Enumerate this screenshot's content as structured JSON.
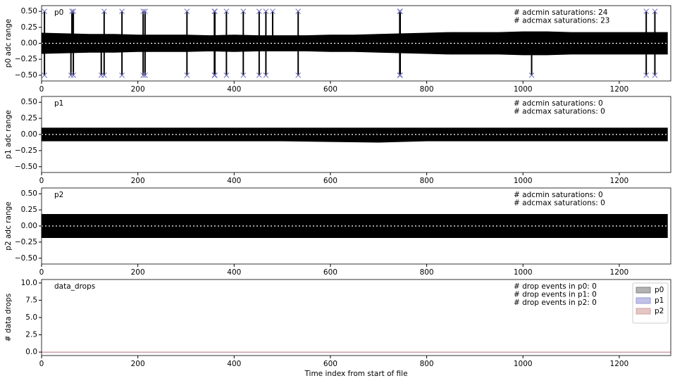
{
  "chart_data": [
    {
      "type": "band",
      "label": "p0",
      "ylabel": "p0 adc range",
      "annotations": [
        "# adcmin saturations: 24",
        "# adcmax saturations: 23"
      ],
      "x": [
        0,
        50,
        100,
        150,
        200,
        250,
        300,
        350,
        400,
        450,
        500,
        550,
        600,
        650,
        700,
        750,
        800,
        850,
        900,
        950,
        1000,
        1050,
        1100,
        1150,
        1200,
        1250,
        1300
      ],
      "upper": [
        0.16,
        0.15,
        0.14,
        0.14,
        0.13,
        0.13,
        0.13,
        0.12,
        0.13,
        0.12,
        0.12,
        0.12,
        0.13,
        0.13,
        0.14,
        0.15,
        0.16,
        0.17,
        0.17,
        0.17,
        0.18,
        0.18,
        0.17,
        0.17,
        0.17,
        0.17,
        0.17
      ],
      "lower": [
        -0.16,
        -0.15,
        -0.14,
        -0.14,
        -0.13,
        -0.13,
        -0.13,
        -0.12,
        -0.13,
        -0.12,
        -0.12,
        -0.12,
        -0.13,
        -0.13,
        -0.14,
        -0.15,
        -0.16,
        -0.17,
        -0.17,
        -0.17,
        -0.18,
        -0.18,
        -0.17,
        -0.17,
        -0.17,
        -0.17,
        -0.17
      ],
      "color": "#000000",
      "zero_line": 0,
      "max_level": 0.5,
      "max_x": [
        6,
        63,
        66,
        130,
        167,
        211,
        215,
        302,
        359,
        360,
        384,
        419,
        452,
        466,
        480,
        533,
        744,
        745,
        1256,
        1274
      ],
      "min_level": -0.5,
      "min_x": [
        6,
        61,
        66,
        124,
        130,
        167,
        211,
        215,
        302,
        359,
        360,
        384,
        419,
        452,
        466,
        533,
        744,
        745,
        1018,
        1256,
        1274
      ],
      "marker_color": "#7070c0",
      "xlim": [
        0,
        1307
      ],
      "xticks": [
        0,
        200,
        400,
        600,
        800,
        1000,
        1200
      ],
      "ylim": [
        -0.59,
        0.59
      ],
      "yticks": [
        {
          "value": -0.5,
          "label": "−0.50"
        },
        {
          "value": -0.25,
          "label": "−0.25"
        },
        {
          "value": 0,
          "label": "0.00"
        },
        {
          "value": 0.25,
          "label": "0.25"
        },
        {
          "value": 0.5,
          "label": "0.50"
        }
      ]
    },
    {
      "type": "band",
      "label": "p1",
      "ylabel": "p1 adc range",
      "annotations": [
        "# adcmin saturations: 0",
        "# adcmax saturations: 0"
      ],
      "x": [
        0,
        100,
        200,
        300,
        400,
        500,
        600,
        700,
        800,
        900,
        1000,
        1100,
        1200,
        1300
      ],
      "upper": [
        0.1,
        0.1,
        0.1,
        0.1,
        0.1,
        0.1,
        0.1,
        0.1,
        0.1,
        0.1,
        0.1,
        0.1,
        0.1,
        0.1
      ],
      "lower": [
        -0.1,
        -0.1,
        -0.1,
        -0.1,
        -0.1,
        -0.1,
        -0.11,
        -0.12,
        -0.1,
        -0.1,
        -0.1,
        -0.1,
        -0.1,
        -0.1
      ],
      "color": "#000000",
      "zero_line": 0,
      "xlim": [
        0,
        1307
      ],
      "xticks": [
        0,
        200,
        400,
        600,
        800,
        1000,
        1200
      ],
      "ylim": [
        -0.59,
        0.59
      ],
      "yticks": [
        {
          "value": -0.5,
          "label": "−0.50"
        },
        {
          "value": -0.25,
          "label": "−0.25"
        },
        {
          "value": 0,
          "label": "0.00"
        },
        {
          "value": 0.25,
          "label": "0.25"
        },
        {
          "value": 0.5,
          "label": "0.50"
        }
      ]
    },
    {
      "type": "band",
      "label": "p2",
      "ylabel": "p2 adc range",
      "annotations": [
        "# adcmin saturations: 0",
        "# adcmax saturations: 0"
      ],
      "x": [
        0,
        100,
        200,
        300,
        400,
        500,
        600,
        700,
        800,
        900,
        1000,
        1100,
        1200,
        1300
      ],
      "upper": [
        0.18,
        0.18,
        0.18,
        0.18,
        0.18,
        0.18,
        0.18,
        0.18,
        0.18,
        0.18,
        0.18,
        0.18,
        0.18,
        0.18
      ],
      "lower": [
        -0.18,
        -0.18,
        -0.18,
        -0.18,
        -0.18,
        -0.18,
        -0.18,
        -0.18,
        -0.18,
        -0.18,
        -0.18,
        -0.18,
        -0.18,
        -0.18
      ],
      "color": "#000000",
      "zero_line": 0,
      "xlim": [
        0,
        1307
      ],
      "xticks": [
        0,
        200,
        400,
        600,
        800,
        1000,
        1200
      ],
      "ylim": [
        -0.59,
        0.59
      ],
      "yticks": [
        {
          "value": -0.5,
          "label": "−0.50"
        },
        {
          "value": -0.25,
          "label": "−0.25"
        },
        {
          "value": 0,
          "label": "0.00"
        },
        {
          "value": 0.25,
          "label": "0.25"
        },
        {
          "value": 0.5,
          "label": "0.50"
        }
      ]
    },
    {
      "type": "line",
      "label": "data_drops",
      "ylabel": "# data drops",
      "xlabel": "Time index from start of file",
      "annotations": [
        "# drop events in p0: 0",
        "# drop events in p1: 0",
        "# drop events in p2: 0"
      ],
      "x": [
        0,
        1307
      ],
      "series": [
        {
          "name": "p0",
          "color": "#808080",
          "values": [
            0,
            0
          ]
        },
        {
          "name": "p1",
          "color": "#9a9ad8",
          "values": [
            0,
            0
          ]
        },
        {
          "name": "p2",
          "color": "#d4a0a0",
          "values": [
            0,
            0
          ]
        }
      ],
      "legend": "upper right",
      "xlim": [
        0,
        1307
      ],
      "xticks": [
        0,
        200,
        400,
        600,
        800,
        1000,
        1200
      ],
      "ylim": [
        -0.5,
        10.5
      ],
      "yticks": [
        {
          "value": 0,
          "label": "0.0"
        },
        {
          "value": 2.5,
          "label": "2.5"
        },
        {
          "value": 5,
          "label": "5.0"
        },
        {
          "value": 7.5,
          "label": "7.5"
        },
        {
          "value": 10,
          "label": "10.0"
        }
      ]
    }
  ]
}
